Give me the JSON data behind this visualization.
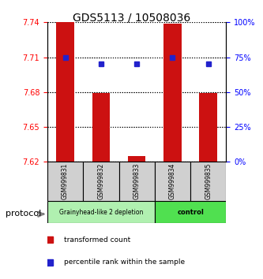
{
  "title": "GDS5113 / 10508036",
  "samples": [
    "GSM999831",
    "GSM999832",
    "GSM999833",
    "GSM999834",
    "GSM999835"
  ],
  "red_bar_values": [
    7.742,
    7.679,
    7.625,
    7.739,
    7.679
  ],
  "blue_marker_values": [
    7.71,
    7.706,
    7.706,
    7.71,
    7.707
  ],
  "blue_percentile_values": [
    75,
    70,
    70,
    75,
    70
  ],
  "y_min": 7.62,
  "y_max": 7.74,
  "y_ticks_left": [
    7.62,
    7.65,
    7.68,
    7.71,
    7.74
  ],
  "y_ticks_right": [
    0,
    25,
    50,
    75,
    100
  ],
  "group1_samples": [
    0,
    1,
    2
  ],
  "group2_samples": [
    3,
    4
  ],
  "group1_label": "Grainyhead-like 2 depletion",
  "group2_label": "control",
  "group1_color": "#b0f0b0",
  "group2_color": "#50e050",
  "bar_color": "#cc1111",
  "marker_color": "#2222cc",
  "bar_width": 0.5,
  "protocol_label": "protocol",
  "legend_red": "transformed count",
  "legend_blue": "percentile rank within the sample"
}
